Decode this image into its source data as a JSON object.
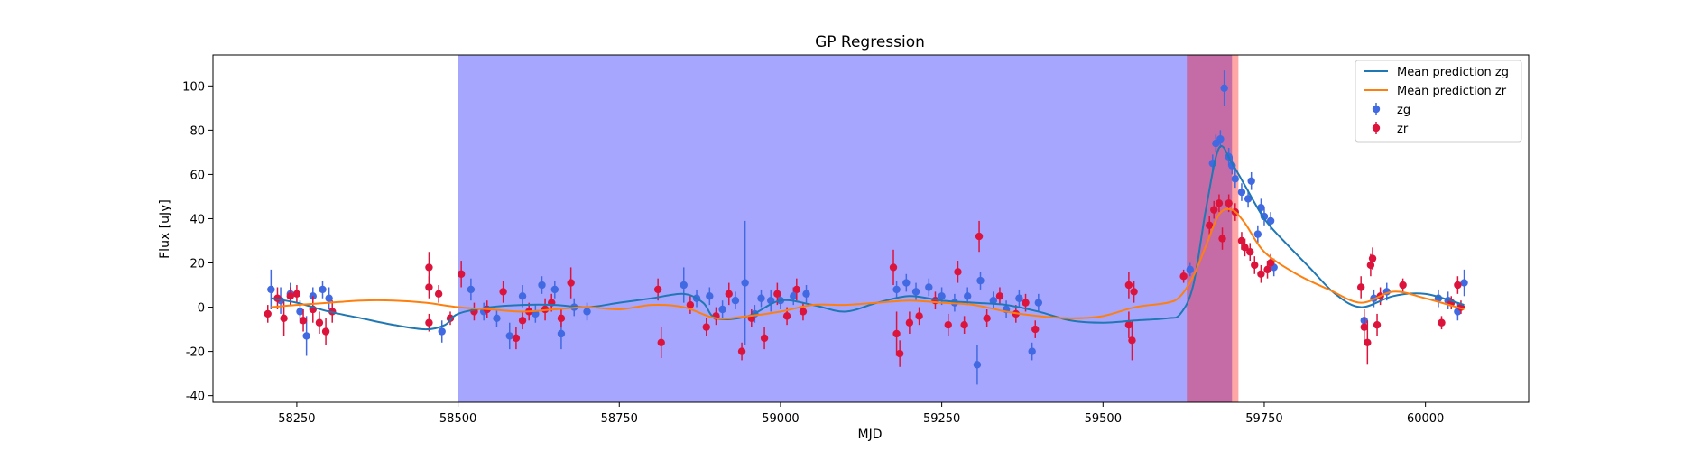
{
  "chart_data": {
    "type": "scatter",
    "title": "GP Regression",
    "xlabel": "MJD",
    "ylabel": "Flux [uJy]",
    "xlim": [
      58120,
      60160
    ],
    "ylim": [
      -43,
      114
    ],
    "xticks": [
      58250,
      58500,
      58750,
      59000,
      59250,
      59500,
      59750,
      60000
    ],
    "yticks": [
      -40,
      -20,
      0,
      20,
      40,
      60,
      80,
      100
    ],
    "grid": false,
    "legend_position": "top-right",
    "colors": {
      "zg": "#4169e1",
      "zr": "#dc143c",
      "mean_zg": "#1f77b4",
      "mean_zr": "#ff7f0e",
      "span_blue": "#0000ff",
      "span_red": "#ff0000"
    },
    "shaded_regions": [
      {
        "x0": 58500,
        "x1": 59700,
        "color": "#0000ff",
        "alpha": 0.35
      },
      {
        "x0": 59630,
        "x1": 59710,
        "color": "#ff0000",
        "alpha": 0.35
      }
    ],
    "series": [
      {
        "name": "Mean prediction zg",
        "kind": "line",
        "color": "#1f77b4",
        "x": [
          58210,
          58250,
          58300,
          58350,
          58400,
          58450,
          58480,
          58500,
          58550,
          58600,
          58650,
          58700,
          58750,
          58800,
          58850,
          58880,
          58900,
          58950,
          59000,
          59050,
          59100,
          59150,
          59200,
          59250,
          59300,
          59350,
          59400,
          59450,
          59500,
          59550,
          59600,
          59620,
          59640,
          59660,
          59680,
          59700,
          59720,
          59750,
          59780,
          59820,
          59860,
          59900,
          59950,
          60000,
          60060
        ],
        "y": [
          4,
          2,
          -2,
          -5,
          -8,
          -10,
          -8,
          -3,
          0,
          1,
          1,
          0,
          2,
          4,
          6,
          2,
          -5,
          -4,
          3,
          1,
          -2,
          2,
          5,
          3,
          2,
          1,
          -2,
          -6,
          -7,
          -6,
          -5,
          -3,
          10,
          45,
          72,
          65,
          55,
          40,
          30,
          18,
          6,
          0,
          5,
          6,
          1
        ]
      },
      {
        "name": "Mean prediction zr",
        "kind": "line",
        "color": "#ff7f0e",
        "x": [
          58210,
          58250,
          58300,
          58350,
          58400,
          58450,
          58500,
          58550,
          58600,
          58650,
          58700,
          58750,
          58800,
          58850,
          58900,
          58950,
          59000,
          59050,
          59100,
          59150,
          59200,
          59250,
          59300,
          59350,
          59400,
          59450,
          59500,
          59550,
          59600,
          59620,
          59640,
          59660,
          59680,
          59700,
          59720,
          59750,
          59800,
          59850,
          59900,
          59950,
          60000,
          60060
        ],
        "y": [
          0,
          1,
          2,
          3,
          3,
          2,
          0,
          -1,
          -2,
          -1,
          0,
          -1,
          1,
          0,
          -5,
          -4,
          -2,
          1,
          1,
          2,
          3,
          2,
          1,
          -2,
          -4,
          -5,
          -4,
          0,
          2,
          5,
          14,
          28,
          42,
          44,
          38,
          25,
          15,
          8,
          2,
          7,
          4,
          -1
        ]
      },
      {
        "name": "zg",
        "kind": "errorbar",
        "color": "#4169e1",
        "points": [
          {
            "x": 58210,
            "y": 8,
            "err": 9
          },
          {
            "x": 58225,
            "y": 3,
            "err": 6
          },
          {
            "x": 58240,
            "y": 6,
            "err": 5
          },
          {
            "x": 58255,
            "y": -2,
            "err": 5
          },
          {
            "x": 58265,
            "y": -13,
            "err": 9
          },
          {
            "x": 58275,
            "y": 5,
            "err": 4
          },
          {
            "x": 58290,
            "y": 8,
            "err": 4
          },
          {
            "x": 58300,
            "y": 4,
            "err": 5
          },
          {
            "x": 58475,
            "y": -11,
            "err": 5
          },
          {
            "x": 58520,
            "y": 8,
            "err": 5
          },
          {
            "x": 58540,
            "y": -2,
            "err": 4
          },
          {
            "x": 58560,
            "y": -5,
            "err": 4
          },
          {
            "x": 58580,
            "y": -13,
            "err": 6
          },
          {
            "x": 58600,
            "y": 5,
            "err": 5
          },
          {
            "x": 58620,
            "y": -3,
            "err": 4
          },
          {
            "x": 58630,
            "y": 10,
            "err": 4
          },
          {
            "x": 58650,
            "y": 8,
            "err": 4
          },
          {
            "x": 58660,
            "y": -12,
            "err": 7
          },
          {
            "x": 58680,
            "y": 0,
            "err": 4
          },
          {
            "x": 58700,
            "y": -2,
            "err": 4
          },
          {
            "x": 58850,
            "y": 10,
            "err": 8
          },
          {
            "x": 58870,
            "y": 4,
            "err": 4
          },
          {
            "x": 58890,
            "y": 5,
            "err": 4
          },
          {
            "x": 58910,
            "y": -1,
            "err": 4
          },
          {
            "x": 58930,
            "y": 3,
            "err": 4
          },
          {
            "x": 58945,
            "y": 11,
            "err": 28
          },
          {
            "x": 58960,
            "y": -3,
            "err": 4
          },
          {
            "x": 58970,
            "y": 4,
            "err": 4
          },
          {
            "x": 58985,
            "y": 3,
            "err": 5
          },
          {
            "x": 59000,
            "y": 3,
            "err": 4
          },
          {
            "x": 59020,
            "y": 5,
            "err": 4
          },
          {
            "x": 59040,
            "y": 6,
            "err": 4
          },
          {
            "x": 59180,
            "y": 8,
            "err": 4
          },
          {
            "x": 59195,
            "y": 11,
            "err": 4
          },
          {
            "x": 59210,
            "y": 7,
            "err": 4
          },
          {
            "x": 59230,
            "y": 9,
            "err": 4
          },
          {
            "x": 59250,
            "y": 5,
            "err": 4
          },
          {
            "x": 59270,
            "y": 2,
            "err": 4
          },
          {
            "x": 59290,
            "y": 5,
            "err": 4
          },
          {
            "x": 59305,
            "y": -26,
            "err": 9
          },
          {
            "x": 59310,
            "y": 12,
            "err": 4
          },
          {
            "x": 59330,
            "y": 3,
            "err": 4
          },
          {
            "x": 59350,
            "y": -1,
            "err": 4
          },
          {
            "x": 59370,
            "y": 4,
            "err": 4
          },
          {
            "x": 59390,
            "y": -20,
            "err": 4
          },
          {
            "x": 59400,
            "y": 2,
            "err": 4
          },
          {
            "x": 59635,
            "y": 17,
            "err": 3
          },
          {
            "x": 59670,
            "y": 65,
            "err": 4
          },
          {
            "x": 59675,
            "y": 74,
            "err": 4
          },
          {
            "x": 59682,
            "y": 76,
            "err": 4
          },
          {
            "x": 59688,
            "y": 99,
            "err": 8
          },
          {
            "x": 59695,
            "y": 68,
            "err": 4
          },
          {
            "x": 59700,
            "y": 64,
            "err": 4
          },
          {
            "x": 59705,
            "y": 58,
            "err": 4
          },
          {
            "x": 59715,
            "y": 52,
            "err": 4
          },
          {
            "x": 59725,
            "y": 49,
            "err": 4
          },
          {
            "x": 59730,
            "y": 57,
            "err": 4
          },
          {
            "x": 59740,
            "y": 33,
            "err": 4
          },
          {
            "x": 59745,
            "y": 45,
            "err": 4
          },
          {
            "x": 59750,
            "y": 41,
            "err": 4
          },
          {
            "x": 59760,
            "y": 39,
            "err": 4
          },
          {
            "x": 59765,
            "y": 18,
            "err": 4
          },
          {
            "x": 59905,
            "y": -6,
            "err": 5
          },
          {
            "x": 59920,
            "y": 4,
            "err": 4
          },
          {
            "x": 59940,
            "y": 7,
            "err": 4
          },
          {
            "x": 60020,
            "y": 4,
            "err": 4
          },
          {
            "x": 60035,
            "y": 3,
            "err": 4
          },
          {
            "x": 60050,
            "y": -2,
            "err": 4
          },
          {
            "x": 60060,
            "y": 11,
            "err": 6
          }
        ]
      },
      {
        "name": "zr",
        "kind": "errorbar",
        "color": "#dc143c",
        "points": [
          {
            "x": 58205,
            "y": -3,
            "err": 4
          },
          {
            "x": 58220,
            "y": 4,
            "err": 5
          },
          {
            "x": 58230,
            "y": -5,
            "err": 8
          },
          {
            "x": 58240,
            "y": 5,
            "err": 4
          },
          {
            "x": 58250,
            "y": 6,
            "err": 4
          },
          {
            "x": 58260,
            "y": -6,
            "err": 5
          },
          {
            "x": 58275,
            "y": -1,
            "err": 6
          },
          {
            "x": 58285,
            "y": -7,
            "err": 5
          },
          {
            "x": 58295,
            "y": -11,
            "err": 6
          },
          {
            "x": 58305,
            "y": -2,
            "err": 5
          },
          {
            "x": 58455,
            "y": 18,
            "err": 7
          },
          {
            "x": 58455,
            "y": 9,
            "err": 5
          },
          {
            "x": 58455,
            "y": -7,
            "err": 4
          },
          {
            "x": 58470,
            "y": 6,
            "err": 4
          },
          {
            "x": 58488,
            "y": -5,
            "err": 3
          },
          {
            "x": 58505,
            "y": 15,
            "err": 6
          },
          {
            "x": 58525,
            "y": -2,
            "err": 4
          },
          {
            "x": 58545,
            "y": -1,
            "err": 4
          },
          {
            "x": 58570,
            "y": 7,
            "err": 5
          },
          {
            "x": 58590,
            "y": -14,
            "err": 5
          },
          {
            "x": 58600,
            "y": -6,
            "err": 4
          },
          {
            "x": 58610,
            "y": -2,
            "err": 4
          },
          {
            "x": 58635,
            "y": -1,
            "err": 5
          },
          {
            "x": 58645,
            "y": 2,
            "err": 4
          },
          {
            "x": 58660,
            "y": -5,
            "err": 4
          },
          {
            "x": 58675,
            "y": 11,
            "err": 7
          },
          {
            "x": 58810,
            "y": 8,
            "err": 5
          },
          {
            "x": 58815,
            "y": -16,
            "err": 7
          },
          {
            "x": 58860,
            "y": 1,
            "err": 4
          },
          {
            "x": 58885,
            "y": -9,
            "err": 4
          },
          {
            "x": 58900,
            "y": -4,
            "err": 4
          },
          {
            "x": 58920,
            "y": 6,
            "err": 5
          },
          {
            "x": 58940,
            "y": -20,
            "err": 4
          },
          {
            "x": 58955,
            "y": -5,
            "err": 4
          },
          {
            "x": 58975,
            "y": -14,
            "err": 5
          },
          {
            "x": 58995,
            "y": 6,
            "err": 5
          },
          {
            "x": 59010,
            "y": -4,
            "err": 4
          },
          {
            "x": 59025,
            "y": 8,
            "err": 5
          },
          {
            "x": 59035,
            "y": -2,
            "err": 4
          },
          {
            "x": 59175,
            "y": 18,
            "err": 8
          },
          {
            "x": 59180,
            "y": -12,
            "err": 10
          },
          {
            "x": 59185,
            "y": -21,
            "err": 6
          },
          {
            "x": 59200,
            "y": -7,
            "err": 5
          },
          {
            "x": 59215,
            "y": -4,
            "err": 4
          },
          {
            "x": 59240,
            "y": 3,
            "err": 4
          },
          {
            "x": 59260,
            "y": -8,
            "err": 5
          },
          {
            "x": 59275,
            "y": 16,
            "err": 5
          },
          {
            "x": 59285,
            "y": -8,
            "err": 4
          },
          {
            "x": 59308,
            "y": 32,
            "err": 7
          },
          {
            "x": 59320,
            "y": -5,
            "err": 4
          },
          {
            "x": 59340,
            "y": 5,
            "err": 4
          },
          {
            "x": 59365,
            "y": -3,
            "err": 4
          },
          {
            "x": 59380,
            "y": 2,
            "err": 4
          },
          {
            "x": 59395,
            "y": -10,
            "err": 4
          },
          {
            "x": 59540,
            "y": 10,
            "err": 6
          },
          {
            "x": 59540,
            "y": -8,
            "err": 6
          },
          {
            "x": 59545,
            "y": -15,
            "err": 9
          },
          {
            "x": 59548,
            "y": 7,
            "err": 5
          },
          {
            "x": 59625,
            "y": 14,
            "err": 3
          },
          {
            "x": 59665,
            "y": 37,
            "err": 4
          },
          {
            "x": 59672,
            "y": 44,
            "err": 4
          },
          {
            "x": 59680,
            "y": 47,
            "err": 4
          },
          {
            "x": 59685,
            "y": 31,
            "err": 5
          },
          {
            "x": 59695,
            "y": 47,
            "err": 4
          },
          {
            "x": 59705,
            "y": 43,
            "err": 4
          },
          {
            "x": 59715,
            "y": 30,
            "err": 4
          },
          {
            "x": 59720,
            "y": 27,
            "err": 4
          },
          {
            "x": 59728,
            "y": 25,
            "err": 4
          },
          {
            "x": 59735,
            "y": 19,
            "err": 4
          },
          {
            "x": 59745,
            "y": 15,
            "err": 4
          },
          {
            "x": 59755,
            "y": 17,
            "err": 4
          },
          {
            "x": 59760,
            "y": 20,
            "err": 4
          },
          {
            "x": 59900,
            "y": 9,
            "err": 5
          },
          {
            "x": 59905,
            "y": -9,
            "err": 8
          },
          {
            "x": 59910,
            "y": -16,
            "err": 10
          },
          {
            "x": 59915,
            "y": 19,
            "err": 5
          },
          {
            "x": 59918,
            "y": 22,
            "err": 5
          },
          {
            "x": 59925,
            "y": -8,
            "err": 5
          },
          {
            "x": 59930,
            "y": 5,
            "err": 4
          },
          {
            "x": 59965,
            "y": 10,
            "err": 3
          },
          {
            "x": 60025,
            "y": -7,
            "err": 3
          },
          {
            "x": 60040,
            "y": 2,
            "err": 3
          },
          {
            "x": 60050,
            "y": 10,
            "err": 4
          },
          {
            "x": 60055,
            "y": 0,
            "err": 3
          }
        ]
      }
    ]
  },
  "legend": {
    "items": [
      {
        "label": "Mean prediction zg",
        "kind": "line",
        "color": "#1f77b4"
      },
      {
        "label": "Mean prediction zr",
        "kind": "line",
        "color": "#ff7f0e"
      },
      {
        "label": "zg",
        "kind": "marker",
        "color": "#4169e1"
      },
      {
        "label": "zr",
        "kind": "marker",
        "color": "#dc143c"
      }
    ]
  }
}
